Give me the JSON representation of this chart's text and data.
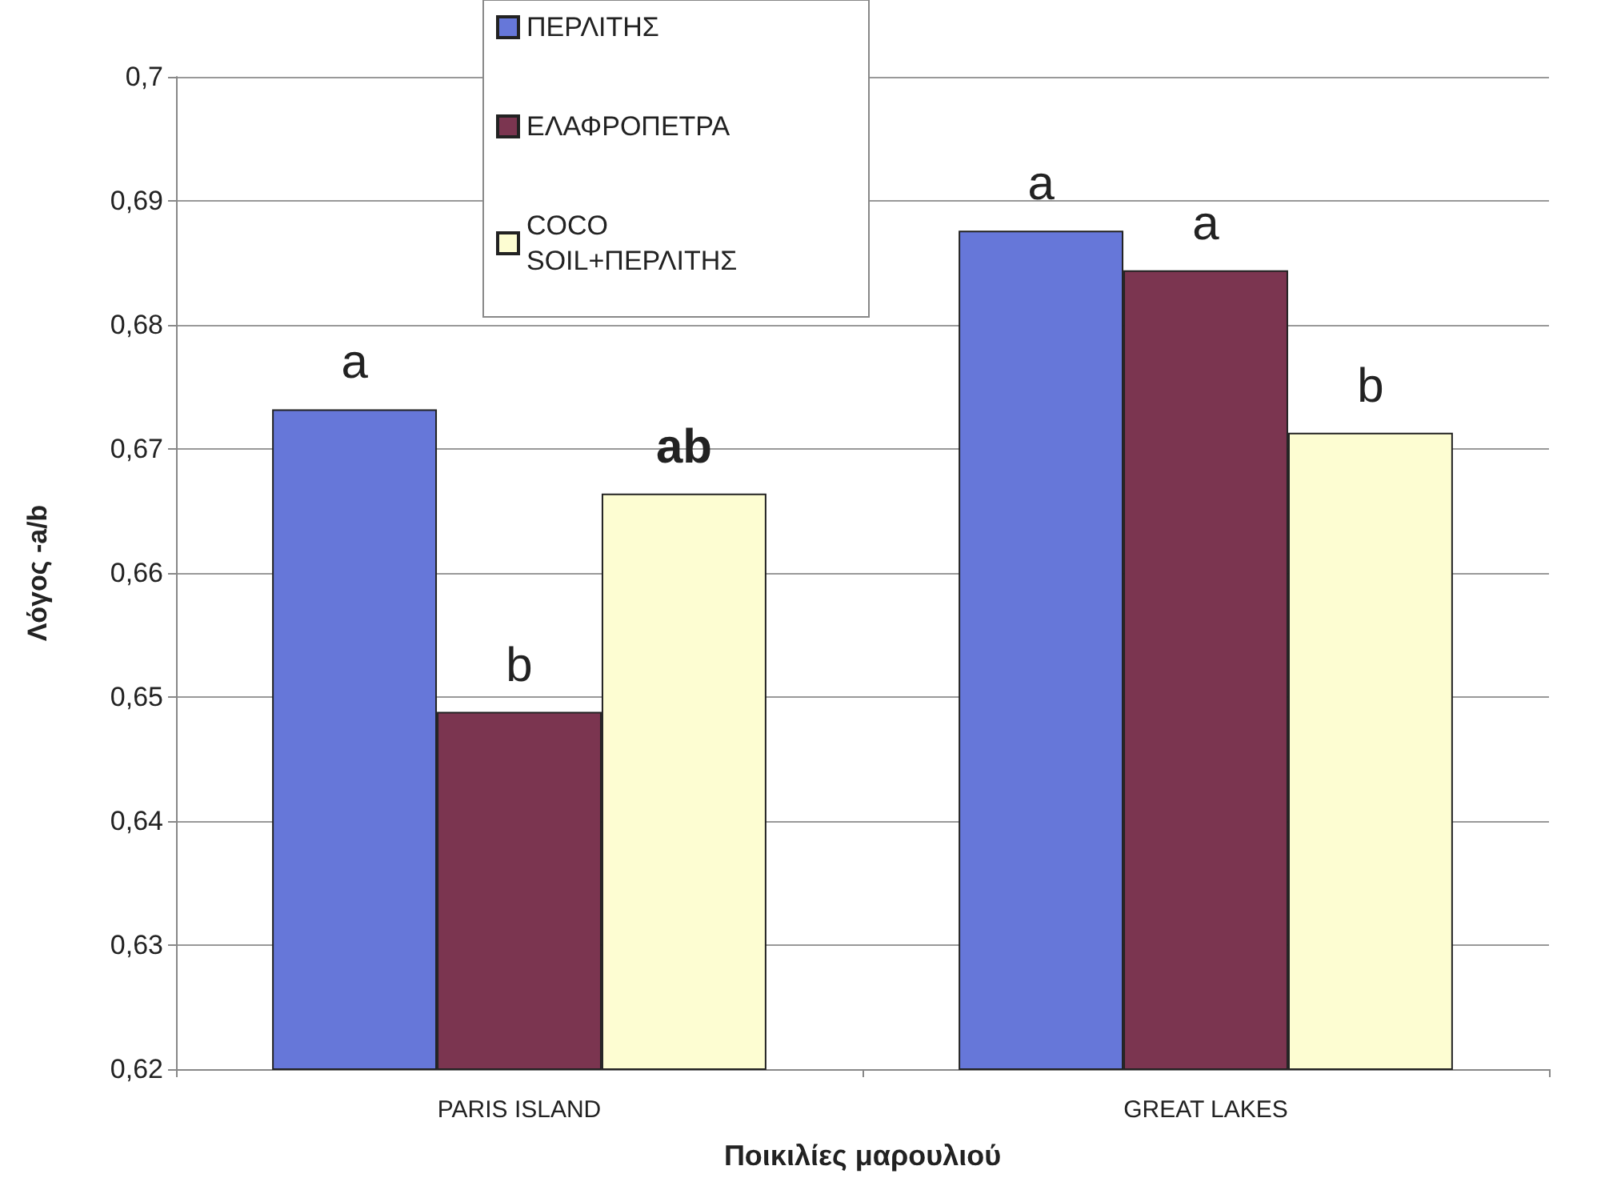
{
  "chart_data": {
    "type": "bar",
    "xlabel": "Ποικιλίες μαρουλιού",
    "ylabel": "Λόγος -a/b",
    "categories": [
      "PARIS ISLAND",
      "GREAT LAKES"
    ],
    "series": [
      {
        "name": "ΠΕΡΛΙΤΗΣ",
        "color": "#6677d9",
        "values": [
          0.6732,
          0.6876
        ]
      },
      {
        "name": "ΕΛΑΦΡΟΠΕΤΡΑ",
        "color": "#7b3550",
        "values": [
          0.6488,
          0.6844
        ]
      },
      {
        "name": "COCO SOIL+ΠΕΡΛΙΤΗΣ",
        "color": "#fdfdd2",
        "values": [
          0.6664,
          0.6713
        ]
      }
    ],
    "ylim": [
      0.62,
      0.7
    ],
    "yticks": [
      {
        "value": 0.62,
        "label": "0,62"
      },
      {
        "value": 0.63,
        "label": "0,63"
      },
      {
        "value": 0.64,
        "label": "0,64"
      },
      {
        "value": 0.65,
        "label": "0,65"
      },
      {
        "value": 0.66,
        "label": "0,66"
      },
      {
        "value": 0.67,
        "label": "0,67"
      },
      {
        "value": 0.68,
        "label": "0,68"
      },
      {
        "value": 0.69,
        "label": "0,69"
      },
      {
        "value": 0.7,
        "label": "0,7"
      }
    ],
    "annotations": [
      "a",
      "b",
      "ab",
      "a",
      "a",
      "b"
    ],
    "grid": "y",
    "legend": "top"
  }
}
